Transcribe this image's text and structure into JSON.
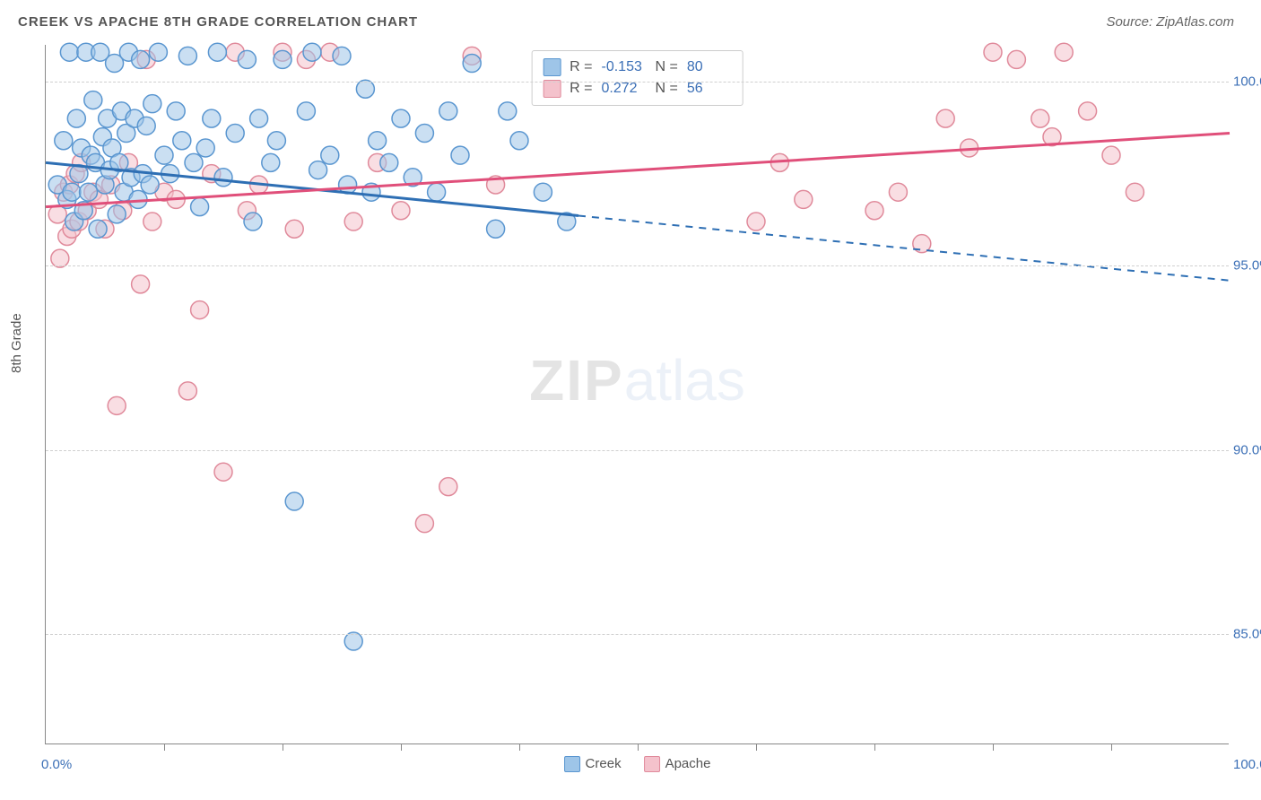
{
  "title": "CREEK VS APACHE 8TH GRADE CORRELATION CHART",
  "source": "Source: ZipAtlas.com",
  "ylabel": "8th Grade",
  "watermark": {
    "zip": "ZIP",
    "atlas": "atlas"
  },
  "chart": {
    "type": "scatter",
    "xlim": [
      0,
      100
    ],
    "ylim": [
      82,
      101
    ],
    "x_min_label": "0.0%",
    "x_max_label": "100.0%",
    "xtick_step": 10,
    "y_gridlines": [
      85,
      90,
      95,
      100
    ],
    "y_labels": [
      "85.0%",
      "90.0%",
      "95.0%",
      "100.0%"
    ],
    "background_color": "#ffffff",
    "grid_color": "#d0d0d0",
    "axis_color": "#888888",
    "tick_label_color": "#3b6fb6",
    "series": [
      {
        "name": "Creek",
        "marker_fill": "#9ec5e8",
        "marker_stroke": "#5a96d0",
        "line_color": "#2e6fb4",
        "marker_radius": 10,
        "fill_opacity": 0.55,
        "R": "-0.153",
        "N": "80",
        "trend": {
          "x1": 0,
          "y1": 97.8,
          "x2": 100,
          "y2": 94.6,
          "solid_until_x": 45
        },
        "points": [
          [
            1,
            97.2
          ],
          [
            1.5,
            98.4
          ],
          [
            1.8,
            96.8
          ],
          [
            2,
            100.8
          ],
          [
            2.2,
            97.0
          ],
          [
            2.4,
            96.2
          ],
          [
            2.6,
            99.0
          ],
          [
            2.8,
            97.5
          ],
          [
            3,
            98.2
          ],
          [
            3.2,
            96.5
          ],
          [
            3.4,
            100.8
          ],
          [
            3.6,
            97.0
          ],
          [
            3.8,
            98.0
          ],
          [
            4,
            99.5
          ],
          [
            4.2,
            97.8
          ],
          [
            4.4,
            96.0
          ],
          [
            4.6,
            100.8
          ],
          [
            4.8,
            98.5
          ],
          [
            5,
            97.2
          ],
          [
            5.2,
            99.0
          ],
          [
            5.4,
            97.6
          ],
          [
            5.6,
            98.2
          ],
          [
            5.8,
            100.5
          ],
          [
            6,
            96.4
          ],
          [
            6.2,
            97.8
          ],
          [
            6.4,
            99.2
          ],
          [
            6.6,
            97.0
          ],
          [
            6.8,
            98.6
          ],
          [
            7,
            100.8
          ],
          [
            7.2,
            97.4
          ],
          [
            7.5,
            99.0
          ],
          [
            7.8,
            96.8
          ],
          [
            8,
            100.6
          ],
          [
            8.2,
            97.5
          ],
          [
            8.5,
            98.8
          ],
          [
            8.8,
            97.2
          ],
          [
            9,
            99.4
          ],
          [
            9.5,
            100.8
          ],
          [
            10,
            98.0
          ],
          [
            10.5,
            97.5
          ],
          [
            11,
            99.2
          ],
          [
            11.5,
            98.4
          ],
          [
            12,
            100.7
          ],
          [
            12.5,
            97.8
          ],
          [
            13,
            96.6
          ],
          [
            13.5,
            98.2
          ],
          [
            14,
            99.0
          ],
          [
            14.5,
            100.8
          ],
          [
            15,
            97.4
          ],
          [
            16,
            98.6
          ],
          [
            17,
            100.6
          ],
          [
            17.5,
            96.2
          ],
          [
            18,
            99.0
          ],
          [
            19,
            97.8
          ],
          [
            19.5,
            98.4
          ],
          [
            20,
            100.6
          ],
          [
            21,
            88.6
          ],
          [
            22,
            99.2
          ],
          [
            22.5,
            100.8
          ],
          [
            23,
            97.6
          ],
          [
            24,
            98.0
          ],
          [
            25,
            100.7
          ],
          [
            25.5,
            97.2
          ],
          [
            26,
            84.8
          ],
          [
            27,
            99.8
          ],
          [
            27.5,
            97.0
          ],
          [
            28,
            98.4
          ],
          [
            29,
            97.8
          ],
          [
            30,
            99.0
          ],
          [
            31,
            97.4
          ],
          [
            32,
            98.6
          ],
          [
            33,
            97.0
          ],
          [
            34,
            99.2
          ],
          [
            35,
            98.0
          ],
          [
            36,
            100.5
          ],
          [
            38,
            96.0
          ],
          [
            39,
            99.2
          ],
          [
            40,
            98.4
          ],
          [
            42,
            97.0
          ],
          [
            44,
            96.2
          ]
        ]
      },
      {
        "name": "Apache",
        "marker_fill": "#f4c2cc",
        "marker_stroke": "#e08a9b",
        "line_color": "#e04f7a",
        "marker_radius": 10,
        "fill_opacity": 0.55,
        "R": "0.272",
        "N": "56",
        "trend": {
          "x1": 0,
          "y1": 96.6,
          "x2": 100,
          "y2": 98.6,
          "solid_until_x": 100
        },
        "points": [
          [
            1,
            96.4
          ],
          [
            1.2,
            95.2
          ],
          [
            1.5,
            97.0
          ],
          [
            1.8,
            95.8
          ],
          [
            2,
            97.2
          ],
          [
            2.2,
            96.0
          ],
          [
            2.5,
            97.5
          ],
          [
            2.8,
            96.2
          ],
          [
            3,
            97.8
          ],
          [
            3.5,
            96.5
          ],
          [
            4,
            97.0
          ],
          [
            4.5,
            96.8
          ],
          [
            5,
            96.0
          ],
          [
            5.5,
            97.2
          ],
          [
            6,
            91.2
          ],
          [
            6.5,
            96.5
          ],
          [
            7,
            97.8
          ],
          [
            8,
            94.5
          ],
          [
            8.5,
            100.6
          ],
          [
            9,
            96.2
          ],
          [
            10,
            97.0
          ],
          [
            11,
            96.8
          ],
          [
            12,
            91.6
          ],
          [
            13,
            93.8
          ],
          [
            14,
            97.5
          ],
          [
            15,
            89.4
          ],
          [
            16,
            100.8
          ],
          [
            17,
            96.5
          ],
          [
            18,
            97.2
          ],
          [
            20,
            100.8
          ],
          [
            21,
            96.0
          ],
          [
            22,
            100.6
          ],
          [
            24,
            100.8
          ],
          [
            26,
            96.2
          ],
          [
            28,
            97.8
          ],
          [
            30,
            96.5
          ],
          [
            32,
            88.0
          ],
          [
            34,
            89.0
          ],
          [
            36,
            100.7
          ],
          [
            38,
            97.2
          ],
          [
            60,
            96.2
          ],
          [
            62,
            97.8
          ],
          [
            64,
            96.8
          ],
          [
            70,
            96.5
          ],
          [
            72,
            97.0
          ],
          [
            74,
            95.6
          ],
          [
            76,
            99.0
          ],
          [
            78,
            98.2
          ],
          [
            80,
            100.8
          ],
          [
            82,
            100.6
          ],
          [
            84,
            99.0
          ],
          [
            85,
            98.5
          ],
          [
            86,
            100.8
          ],
          [
            88,
            99.2
          ],
          [
            90,
            98.0
          ],
          [
            92,
            97.0
          ]
        ]
      }
    ],
    "legend_bottom": [
      {
        "label": "Creek",
        "fill": "#9ec5e8",
        "stroke": "#5a96d0"
      },
      {
        "label": "Apache",
        "fill": "#f4c2cc",
        "stroke": "#e08a9b"
      }
    ]
  }
}
